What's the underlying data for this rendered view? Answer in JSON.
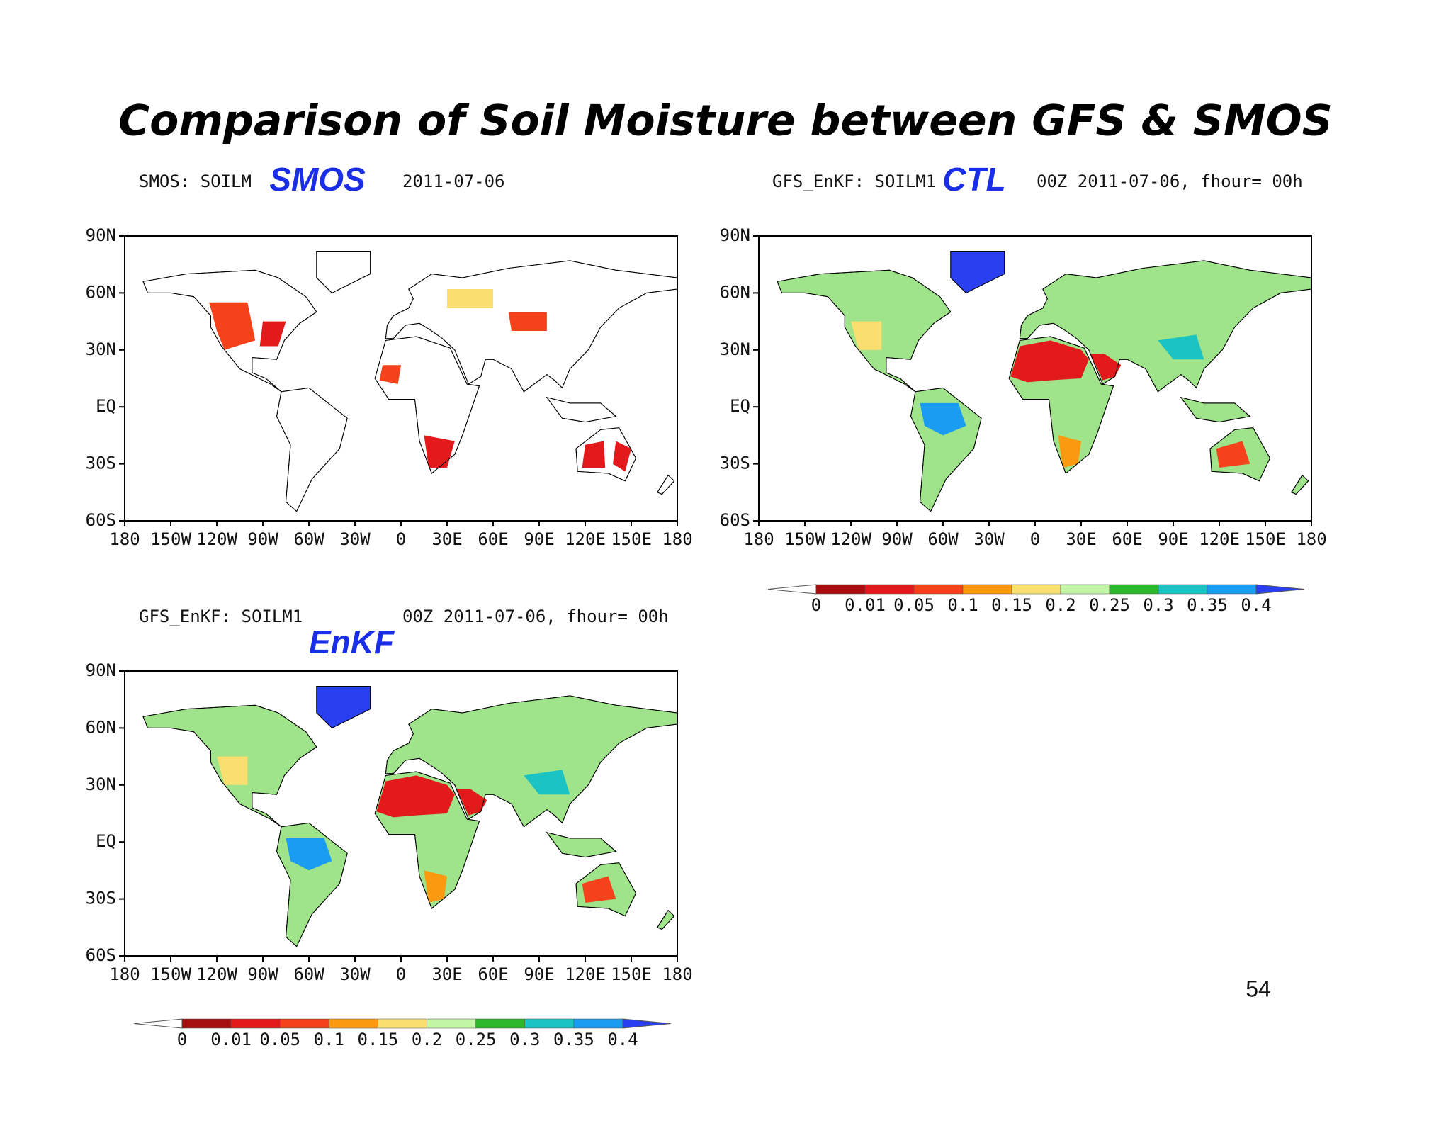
{
  "title": "Comparison of Soil Moisture between GFS & SMOS",
  "panels": [
    {
      "header": "SMOS: SOILM",
      "label": "SMOS",
      "time": "2011-07-06"
    },
    {
      "header": "GFS_EnKF: SOILM1",
      "label": "CTL",
      "time": "00Z 2011-07-06, fhour= 00h"
    },
    {
      "header": "GFS_EnKF: SOILM1",
      "label": "EnKF",
      "time": "00Z 2011-07-06, fhour= 00h"
    }
  ],
  "lat_labels": [
    "90N",
    "60N",
    "30N",
    "EQ",
    "30S",
    "60S"
  ],
  "lon_labels": [
    "180",
    "150W",
    "120W",
    "90W",
    "60W",
    "30W",
    "0",
    "30E",
    "60E",
    "90E",
    "120E",
    "150E",
    "180"
  ],
  "colorbar": {
    "labels": [
      0,
      0.01,
      0.05,
      0.1,
      0.15,
      0.2,
      0.25,
      0.3,
      0.35,
      0.4
    ],
    "colors": [
      "#ffffff",
      "#a50f0f",
      "#e31a1c",
      "#f5421a",
      "#fb9a10",
      "#f8df6f",
      "#c2f5a5",
      "#2bb82b",
      "#1bc3c3",
      "#1a9cf0",
      "#2a3ff0"
    ]
  },
  "page_number": 54
}
